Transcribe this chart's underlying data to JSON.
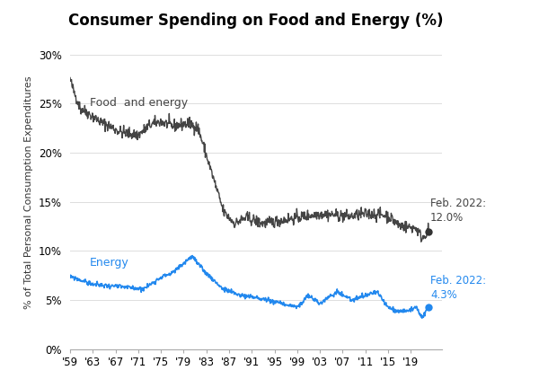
{
  "title": "Consumer Spending on Food and Energy (%)",
  "ylabel": "% of Total Personal Consumption Expenditures",
  "food_energy_label": "Food  and energy",
  "energy_label": "Energy",
  "food_annotation": "Feb. 2022:\n12.0%",
  "energy_annotation": "Feb. 2022:\n4.3%",
  "food_color": "#444444",
  "energy_color": "#2288EE",
  "dot_color_food": "#333333",
  "dot_color_energy": "#2288EE",
  "yticks": [
    0,
    5,
    10,
    15,
    20,
    25,
    30
  ],
  "ytick_labels": [
    "0%",
    "5%",
    "10%",
    "15%",
    "20%",
    "25%",
    "30%"
  ],
  "xtick_labels": [
    "'59",
    "'63",
    "'67",
    "'71",
    "'75",
    "'79",
    "'83",
    "'87",
    "'91",
    "'95",
    "'99",
    "'03",
    "'07",
    "'11",
    "'15",
    "'19"
  ],
  "ylim": [
    0,
    32
  ],
  "xlim_left": 1959,
  "xlim_right": 2024.5,
  "background_color": "#ffffff",
  "title_fontsize": 12,
  "label_fontsize": 9,
  "annotation_fontsize": 8.5
}
